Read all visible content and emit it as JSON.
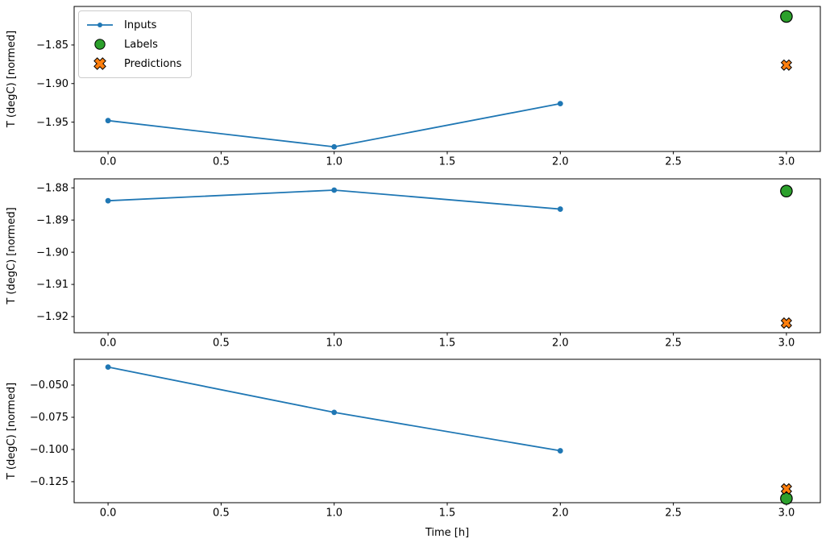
{
  "figure": {
    "background": "#ffffff",
    "xlabel": "Time [h]",
    "ylabel": "T (degC) [normed]"
  },
  "legend": {
    "location": "upper-left",
    "items": [
      {
        "label": "Inputs",
        "marker": "line-dot",
        "color": "#1f77b4",
        "edge_color": "#1f77b4"
      },
      {
        "label": "Labels",
        "marker": "circle",
        "color": "#2ca02c",
        "edge_color": "#000000"
      },
      {
        "label": "Predictions",
        "marker": "X",
        "color": "#ff7f0e",
        "edge_color": "#000000"
      }
    ]
  },
  "chart_data": [
    {
      "type": "line",
      "title": "",
      "xlabel": "",
      "ylabel": "T (degC) [normed]",
      "grid": false,
      "xlim": [
        -0.15,
        3.15
      ],
      "ylim": [
        -1.988,
        -1.8
      ],
      "x_tick_values": [
        0,
        0.5,
        1,
        1.5,
        2,
        2.5,
        3
      ],
      "x_tick_labels": [
        "0.0",
        "0.5",
        "1.0",
        "1.5",
        "2.0",
        "2.5",
        "3.0"
      ],
      "y_tick_values": [
        -1.85,
        -1.9,
        -1.95
      ],
      "y_tick_labels": [
        "−1.85",
        "−1.90",
        "−1.95"
      ],
      "series": [
        {
          "name": "Inputs",
          "kind": "line",
          "marker": "dot",
          "color": "#1f77b4",
          "x": [
            0,
            1,
            2
          ],
          "y": [
            -1.948,
            -1.982,
            -1.926
          ]
        },
        {
          "name": "Labels",
          "kind": "scatter",
          "marker": "circle",
          "color": "#2ca02c",
          "edge_color": "#000000",
          "x": [
            3
          ],
          "y": [
            -1.813
          ]
        },
        {
          "name": "Predictions",
          "kind": "scatter",
          "marker": "X",
          "color": "#ff7f0e",
          "edge_color": "#000000",
          "x": [
            3
          ],
          "y": [
            -1.876
          ]
        }
      ]
    },
    {
      "type": "line",
      "title": "",
      "xlabel": "",
      "ylabel": "T (degC) [normed]",
      "grid": false,
      "xlim": [
        -0.15,
        3.15
      ],
      "ylim": [
        -1.925,
        -1.8772
      ],
      "x_tick_values": [
        0,
        0.5,
        1,
        1.5,
        2,
        2.5,
        3
      ],
      "x_tick_labels": [
        "0.0",
        "0.5",
        "1.0",
        "1.5",
        "2.0",
        "2.5",
        "3.0"
      ],
      "y_tick_values": [
        -1.88,
        -1.89,
        -1.9,
        -1.91,
        -1.92
      ],
      "y_tick_labels": [
        "−1.88",
        "−1.89",
        "−1.90",
        "−1.91",
        "−1.92"
      ],
      "series": [
        {
          "name": "Inputs",
          "kind": "line",
          "marker": "dot",
          "color": "#1f77b4",
          "x": [
            0,
            1,
            2
          ],
          "y": [
            -1.884,
            -1.8807,
            -1.8866
          ]
        },
        {
          "name": "Labels",
          "kind": "scatter",
          "marker": "circle",
          "color": "#2ca02c",
          "edge_color": "#000000",
          "x": [
            3
          ],
          "y": [
            -1.881
          ]
        },
        {
          "name": "Predictions",
          "kind": "scatter",
          "marker": "X",
          "color": "#ff7f0e",
          "edge_color": "#000000",
          "x": [
            3
          ],
          "y": [
            -1.922
          ]
        }
      ]
    },
    {
      "type": "line",
      "title": "",
      "xlabel": "Time [h]",
      "ylabel": "T (degC) [normed]",
      "grid": false,
      "xlim": [
        -0.15,
        3.15
      ],
      "ylim": [
        -0.1413,
        -0.03
      ],
      "x_tick_values": [
        0,
        0.5,
        1,
        1.5,
        2,
        2.5,
        3
      ],
      "x_tick_labels": [
        "0.0",
        "0.5",
        "1.0",
        "1.5",
        "2.0",
        "2.5",
        "3.0"
      ],
      "y_tick_values": [
        -0.05,
        -0.075,
        -0.1,
        -0.125
      ],
      "y_tick_labels": [
        "−0.050",
        "−0.075",
        "−0.100",
        "−0.125"
      ],
      "series": [
        {
          "name": "Inputs",
          "kind": "line",
          "marker": "dot",
          "color": "#1f77b4",
          "x": [
            0,
            1,
            2
          ],
          "y": [
            -0.036,
            -0.0712,
            -0.101
          ]
        },
        {
          "name": "Labels",
          "kind": "scatter",
          "marker": "circle",
          "color": "#2ca02c",
          "edge_color": "#000000",
          "x": [
            3
          ],
          "y": [
            -0.138
          ]
        },
        {
          "name": "Predictions",
          "kind": "scatter",
          "marker": "X",
          "color": "#ff7f0e",
          "edge_color": "#000000",
          "x": [
            3
          ],
          "y": [
            -0.1306
          ]
        }
      ]
    }
  ]
}
